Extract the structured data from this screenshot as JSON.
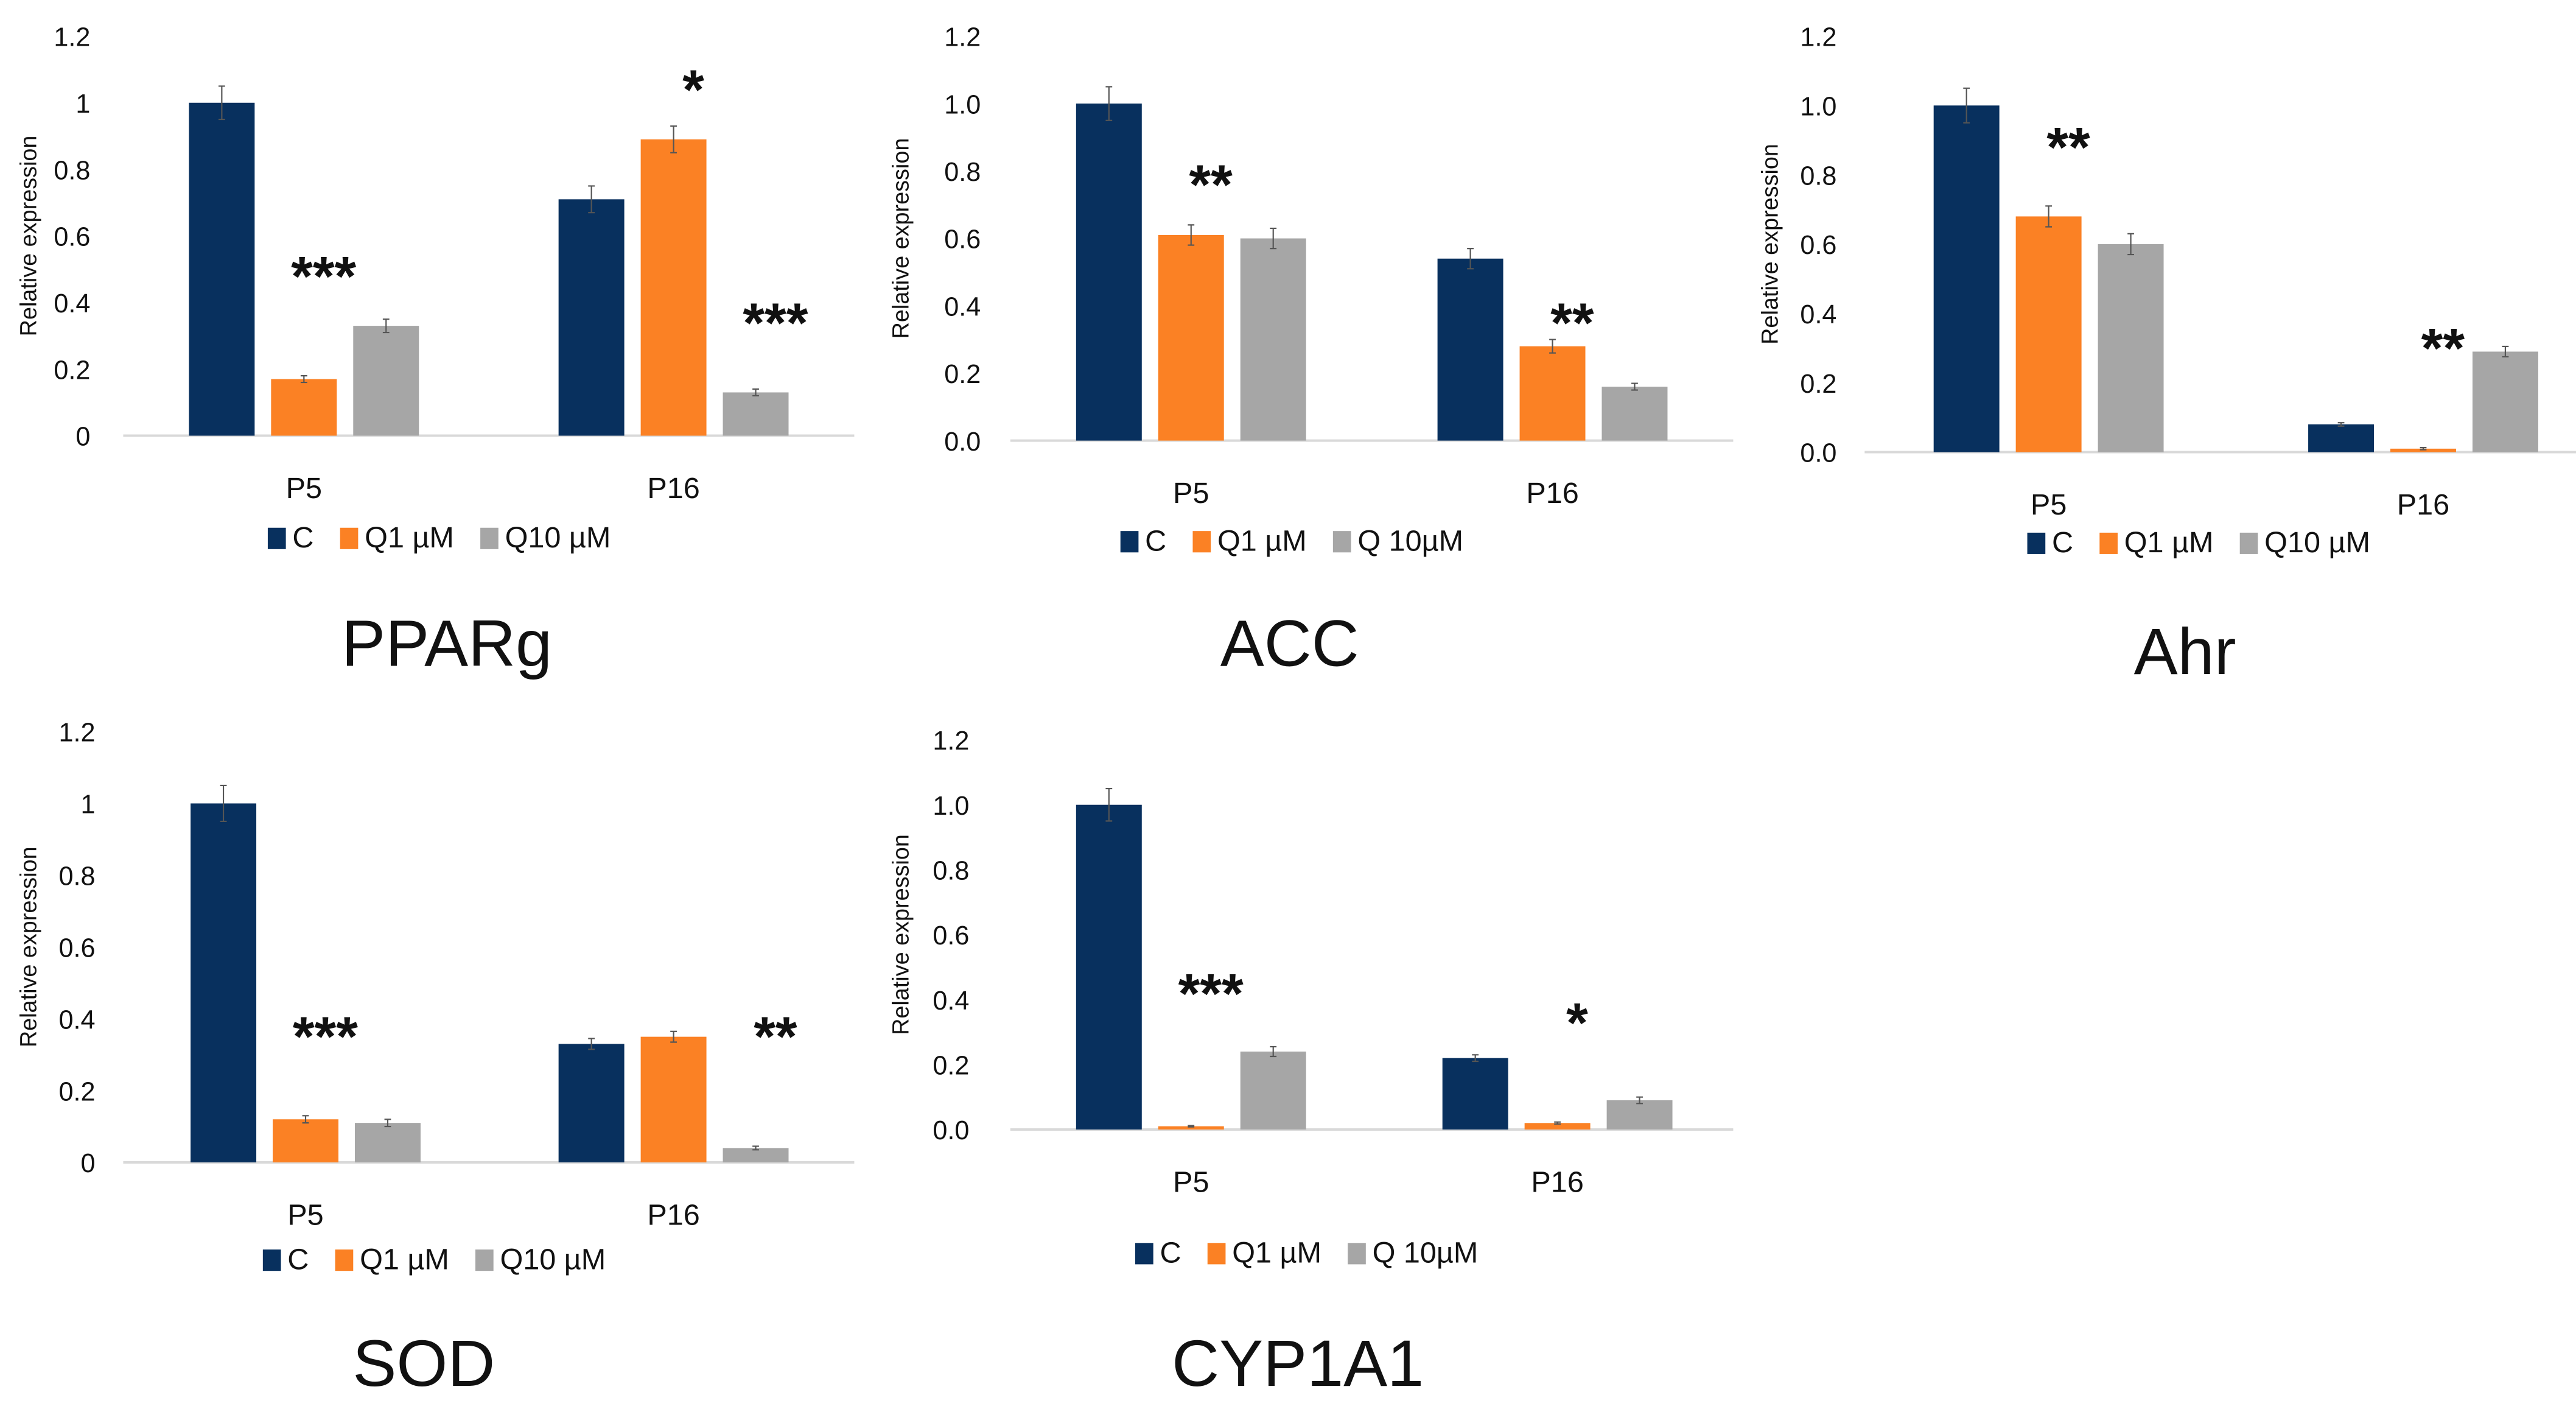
{
  "colors": {
    "C": "#08305e",
    "Q1": "#fb8124",
    "Q10": "#a6a6a6",
    "axis": "#d9d9d9",
    "err": "#555555"
  },
  "chart_data": [
    {
      "type": "bar",
      "title": "PPARg",
      "ylabel": "Relative expression",
      "xlabel": "",
      "ylim": [
        0,
        1.2
      ],
      "yticks": [
        "0",
        "0.2",
        "0.4",
        "0.6",
        "0.8",
        "1",
        "1.2"
      ],
      "categories": [
        "P5",
        "P16"
      ],
      "series": [
        {
          "name": "C",
          "values": [
            1.0,
            0.71
          ],
          "errors": [
            0.05,
            0.04
          ]
        },
        {
          "name": "Q1 µM",
          "values": [
            0.17,
            0.89
          ],
          "errors": [
            0.01,
            0.04
          ]
        },
        {
          "name": "Q10 µM",
          "values": [
            0.33,
            0.13
          ],
          "errors": [
            0.02,
            0.01
          ]
        }
      ],
      "annotations": [
        {
          "text": "***",
          "category": 0,
          "series": 1,
          "at": 0.5
        },
        {
          "text": "*",
          "category": 1,
          "series": 1,
          "at": 1.06
        },
        {
          "text": "***",
          "category": 1,
          "series": 2,
          "at": 0.36
        }
      ],
      "legend": "bottom"
    },
    {
      "type": "bar",
      "title": "ACC",
      "ylabel": "Relative expression",
      "xlabel": "",
      "ylim": [
        0,
        1.2
      ],
      "yticks": [
        "0.0",
        "0.2",
        "0.4",
        "0.6",
        "0.8",
        "1.0",
        "1.2"
      ],
      "categories": [
        "P5",
        "P16"
      ],
      "series": [
        {
          "name": "C",
          "values": [
            1.0,
            0.54
          ],
          "errors": [
            0.05,
            0.03
          ]
        },
        {
          "name": "Q1 µM",
          "values": [
            0.61,
            0.28
          ],
          "errors": [
            0.03,
            0.02
          ]
        },
        {
          "name": "Q 10µM",
          "values": [
            0.6,
            0.16
          ],
          "errors": [
            0.03,
            0.01
          ]
        }
      ],
      "annotations": [
        {
          "text": "**",
          "category": 0,
          "series": 1,
          "at": 0.78
        },
        {
          "text": "**",
          "category": 1,
          "series": 1,
          "at": 0.37
        }
      ],
      "legend": "bottom"
    },
    {
      "type": "bar",
      "title": "Ahr",
      "ylabel": "Relative expression",
      "xlabel": "",
      "ylim": [
        0,
        1.2
      ],
      "yticks": [
        "0.0",
        "0.2",
        "0.4",
        "0.6",
        "0.8",
        "1.0",
        "1.2"
      ],
      "categories": [
        "P5",
        "P16"
      ],
      "series": [
        {
          "name": "C",
          "values": [
            1.0,
            0.08
          ],
          "errors": [
            0.05,
            0.005
          ]
        },
        {
          "name": "Q1 µM",
          "values": [
            0.68,
            0.01
          ],
          "errors": [
            0.03,
            0.003
          ]
        },
        {
          "name": "Q10 µM",
          "values": [
            0.6,
            0.29
          ],
          "errors": [
            0.03,
            0.015
          ]
        }
      ],
      "annotations": [
        {
          "text": "**",
          "category": 0,
          "series": 1,
          "at": 0.9
        },
        {
          "text": "**",
          "category": 1,
          "series": 1,
          "at": 0.32
        }
      ],
      "legend": "bottom"
    },
    {
      "type": "bar",
      "title": "SOD",
      "ylabel": "Relative expression",
      "xlabel": "",
      "ylim": [
        0,
        1.2
      ],
      "yticks": [
        "0",
        "0.2",
        "0.4",
        "0.6",
        "0.8",
        "1",
        "1.2"
      ],
      "categories": [
        "P5",
        "P16"
      ],
      "series": [
        {
          "name": "C",
          "values": [
            1.0,
            0.33
          ],
          "errors": [
            0.05,
            0.015
          ]
        },
        {
          "name": "Q1 µM",
          "values": [
            0.12,
            0.35
          ],
          "errors": [
            0.01,
            0.015
          ]
        },
        {
          "name": "Q10 µM",
          "values": [
            0.11,
            0.04
          ],
          "errors": [
            0.01,
            0.005
          ]
        }
      ],
      "annotations": [
        {
          "text": "***",
          "category": 0,
          "series": 1,
          "at": 0.37
        },
        {
          "text": "**",
          "category": 1,
          "series": 2,
          "at": 0.37
        }
      ],
      "legend": "bottom"
    },
    {
      "type": "bar",
      "title": "CYP1A1",
      "ylabel": "Relative expression",
      "xlabel": "",
      "ylim": [
        0,
        1.2
      ],
      "yticks": [
        "0.0",
        "0.2",
        "0.4",
        "0.6",
        "0.8",
        "1.0",
        "1.2"
      ],
      "categories": [
        "P5",
        "P16"
      ],
      "series": [
        {
          "name": "C",
          "values": [
            1.0,
            0.22
          ],
          "errors": [
            0.05,
            0.01
          ]
        },
        {
          "name": "Q1 µM",
          "values": [
            0.01,
            0.02
          ],
          "errors": [
            0.002,
            0.003
          ]
        },
        {
          "name": "Q 10µM",
          "values": [
            0.24,
            0.09
          ],
          "errors": [
            0.015,
            0.01
          ]
        }
      ],
      "annotations": [
        {
          "text": "***",
          "category": 0,
          "series": 1,
          "at": 0.44
        },
        {
          "text": "*",
          "category": 1,
          "series": 1,
          "at": 0.35
        }
      ],
      "legend": "bottom"
    }
  ]
}
